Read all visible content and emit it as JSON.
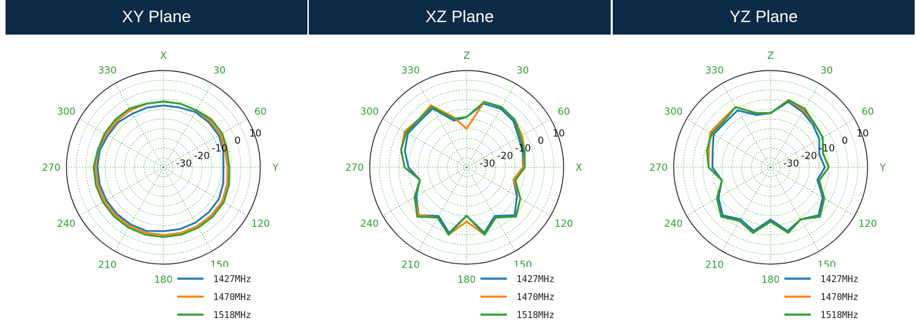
{
  "chart_data": [
    {
      "type": "polar-line",
      "title": "XY Plane",
      "angle_labels": [
        "X",
        "30",
        "60",
        "Y",
        "120",
        "150",
        "180",
        "210",
        "240",
        "270",
        "300",
        "330"
      ],
      "radial_tick_labels": [
        "-30",
        "-20",
        "-10",
        "0",
        "10"
      ],
      "rlim": [
        -40,
        10
      ],
      "grid": true,
      "legend_position": "bottom-right",
      "angles_deg": [
        0,
        15,
        30,
        45,
        60,
        75,
        90,
        105,
        120,
        135,
        150,
        165,
        180,
        195,
        210,
        225,
        240,
        255,
        270,
        285,
        300,
        315,
        330,
        345
      ],
      "series": [
        {
          "name": "1427MHz",
          "color": "#1f77b4",
          "values": [
            -8,
            -8,
            -7,
            -7,
            -7,
            -8,
            -9,
            -8,
            -7,
            -7,
            -7,
            -7,
            -7,
            -6,
            -6,
            -6,
            -6,
            -6,
            -6,
            -6,
            -7,
            -7,
            -8,
            -8
          ]
        },
        {
          "name": "1470MHz",
          "color": "#ff7f0e",
          "values": [
            -6,
            -6,
            -6,
            -6,
            -6,
            -7,
            -7,
            -6,
            -5,
            -5,
            -5,
            -5,
            -5,
            -5,
            -5,
            -5,
            -5,
            -5,
            -5,
            -5,
            -6,
            -6,
            -6,
            -6
          ]
        },
        {
          "name": "1518MHz",
          "color": "#2ca02c",
          "values": [
            -6,
            -6,
            -6,
            -5,
            -5,
            -6,
            -6,
            -5,
            -4,
            -4,
            -4,
            -4,
            -4,
            -4,
            -4,
            -4,
            -4,
            -4,
            -4,
            -5,
            -5,
            -5,
            -5,
            -6
          ]
        }
      ]
    },
    {
      "type": "polar-line",
      "title": "XZ Plane",
      "angle_labels": [
        "Z",
        "30",
        "60",
        "X",
        "120",
        "150",
        "180",
        "210",
        "240",
        "270",
        "300",
        "330"
      ],
      "radial_tick_labels": [
        "-30",
        "-20",
        "-10",
        "0",
        "10"
      ],
      "rlim": [
        -40,
        10
      ],
      "grid": true,
      "legend_position": "bottom-right",
      "angles_deg": [
        0,
        15,
        30,
        45,
        60,
        75,
        90,
        105,
        120,
        135,
        150,
        165,
        180,
        195,
        210,
        225,
        240,
        255,
        270,
        285,
        300,
        315,
        330,
        345
      ],
      "series": [
        {
          "name": "1427MHz",
          "color": "#1f77b4",
          "values": [
            -14,
            -6,
            -5,
            -6,
            -9,
            -10,
            -11,
            -15,
            -10,
            -5,
            -11,
            -5,
            -15,
            -5,
            -11,
            -5,
            -10,
            -15,
            -10,
            -7,
            -5,
            -6,
            -5,
            -15
          ]
        },
        {
          "name": "1470MHz",
          "color": "#ff7f0e",
          "values": [
            -20,
            -5,
            -4,
            -5,
            -7,
            -9,
            -11,
            -15,
            -8,
            -4,
            -10,
            -4,
            -12,
            -4,
            -10,
            -5,
            -9,
            -15,
            -8,
            -5,
            -3,
            -5,
            -3,
            -13
          ]
        },
        {
          "name": "1518MHz",
          "color": "#2ca02c",
          "values": [
            -14,
            -5,
            -4,
            -5,
            -8,
            -9,
            -10,
            -14,
            -8,
            -4,
            -10,
            -4,
            -15,
            -4,
            -10,
            -4,
            -9,
            -15,
            -8,
            -5,
            -4,
            -5,
            -4,
            -14
          ]
        }
      ]
    },
    {
      "type": "polar-line",
      "title": "YZ Plane",
      "angle_labels": [
        "Z",
        "30",
        "60",
        "Y",
        "120",
        "150",
        "180",
        "210",
        "240",
        "270",
        "300",
        "330"
      ],
      "radial_tick_labels": [
        "-30",
        "-20",
        "-10",
        "0",
        "10"
      ],
      "rlim": [
        -40,
        10
      ],
      "grid": true,
      "legend_position": "bottom-right",
      "angles_deg": [
        0,
        15,
        30,
        45,
        60,
        75,
        90,
        105,
        120,
        135,
        150,
        165,
        180,
        195,
        210,
        225,
        240,
        255,
        270,
        285,
        300,
        315,
        330,
        345
      ],
      "series": [
        {
          "name": "1427MHz",
          "color": "#1f77b4",
          "values": [
            -12,
            -5,
            -7,
            -9,
            -11,
            -14,
            -12,
            -15,
            -9,
            -5,
            -9,
            -6,
            -13,
            -6,
            -9,
            -5,
            -9,
            -14,
            -10,
            -9,
            -6,
            -7,
            -6,
            -12
          ]
        },
        {
          "name": "1470MHz",
          "color": "#ff7f0e",
          "values": [
            -12,
            -4,
            -6,
            -8,
            -9,
            -12,
            -10,
            -14,
            -8,
            -4,
            -9,
            -5,
            -12,
            -5,
            -8,
            -4,
            -8,
            -14,
            -8,
            -7,
            -4,
            -5,
            -4,
            -11
          ]
        },
        {
          "name": "1518MHz",
          "color": "#2ca02c",
          "values": [
            -12,
            -4,
            -5,
            -8,
            -9,
            -12,
            -10,
            -14,
            -8,
            -4,
            -9,
            -5,
            -12,
            -5,
            -8,
            -4,
            -8,
            -14,
            -8,
            -6,
            -5,
            -6,
            -4,
            -11
          ]
        }
      ]
    }
  ]
}
